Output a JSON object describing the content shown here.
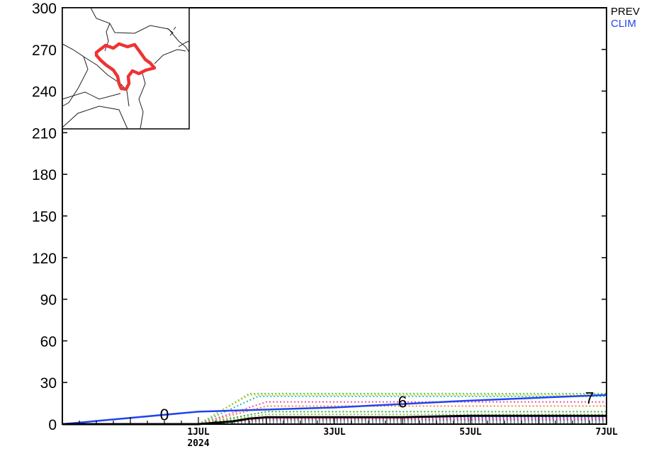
{
  "legend": {
    "prev_label": "PREV",
    "prev_color": "#000000",
    "clim_label": "CLIM",
    "clim_color": "#2244ee"
  },
  "inset_map": {
    "region_highlight_color": "#ee3333"
  },
  "chart_data": {
    "type": "line",
    "title": "",
    "xlabel": "",
    "ylabel": "",
    "ylim": [
      0,
      300
    ],
    "yticks": [
      0,
      30,
      60,
      90,
      120,
      150,
      180,
      210,
      240,
      270,
      300
    ],
    "xlim": [
      "2024-06-29T00:00",
      "2024-07-07T00:00"
    ],
    "xticks": [
      {
        "date": "2024-07-01",
        "label": "1JUL",
        "sublabel": "2024"
      },
      {
        "date": "2024-07-03",
        "label": "3JUL",
        "sublabel": ""
      },
      {
        "date": "2024-07-05",
        "label": "5JUL",
        "sublabel": ""
      },
      {
        "date": "2024-07-07",
        "label": "7JUL",
        "sublabel": ""
      }
    ],
    "grid": false,
    "legend_position": "top-right",
    "series": [
      {
        "name": "PREV",
        "color": "#000000",
        "style": "solid",
        "points": [
          [
            "2024-06-29T00:00",
            0
          ],
          [
            "2024-07-01T00:00",
            0
          ],
          [
            "2024-07-01T12:00",
            2
          ],
          [
            "2024-07-01T18:00",
            4
          ],
          [
            "2024-07-02T00:00",
            5
          ],
          [
            "2024-07-04T00:00",
            5
          ],
          [
            "2024-07-05T00:00",
            6
          ],
          [
            "2024-07-07T00:00",
            6
          ]
        ]
      },
      {
        "name": "CLIM",
        "color": "#2244ee",
        "style": "solid",
        "points": [
          [
            "2024-06-29T00:00",
            0
          ],
          [
            "2024-07-01T00:00",
            9
          ],
          [
            "2024-07-03T00:00",
            12
          ],
          [
            "2024-07-05T00:00",
            17
          ],
          [
            "2024-07-07T00:00",
            21
          ]
        ]
      }
    ],
    "ensemble_members": [
      {
        "color": "#55cc55",
        "points": [
          [
            "2024-07-01T00:00",
            0
          ],
          [
            "2024-07-01T18:00",
            22
          ],
          [
            "2024-07-07T00:00",
            22
          ]
        ]
      },
      {
        "color": "#ddcc33",
        "points": [
          [
            "2024-07-01T00:00",
            0
          ],
          [
            "2024-07-01T18:00",
            21
          ],
          [
            "2024-07-07T00:00",
            21
          ]
        ]
      },
      {
        "color": "#22bbbb",
        "points": [
          [
            "2024-07-01T00:00",
            0
          ],
          [
            "2024-07-01T21:00",
            20
          ],
          [
            "2024-07-07T00:00",
            20
          ]
        ]
      },
      {
        "color": "#ee55aa",
        "points": [
          [
            "2024-07-01T00:00",
            0
          ],
          [
            "2024-07-02T00:00",
            16
          ],
          [
            "2024-07-07T00:00",
            16
          ]
        ]
      },
      {
        "color": "#ee8833",
        "points": [
          [
            "2024-07-01T00:00",
            0
          ],
          [
            "2024-07-02T00:00",
            13
          ],
          [
            "2024-07-07T00:00",
            13
          ]
        ]
      },
      {
        "color": "#33aa33",
        "points": [
          [
            "2024-07-01T00:00",
            0
          ],
          [
            "2024-07-02T00:00",
            9
          ],
          [
            "2024-07-07T00:00",
            9
          ]
        ]
      },
      {
        "color": "#88cc44",
        "points": [
          [
            "2024-07-01T00:00",
            0
          ],
          [
            "2024-07-02T00:00",
            7
          ],
          [
            "2024-07-07T00:00",
            7
          ]
        ]
      },
      {
        "color": "#3366ee",
        "points": [
          [
            "2024-07-01T00:00",
            0
          ],
          [
            "2024-07-02T00:00",
            5
          ],
          [
            "2024-07-07T00:00",
            5
          ]
        ]
      },
      {
        "color": "#aa33cc",
        "points": [
          [
            "2024-07-01T00:00",
            0
          ],
          [
            "2024-07-02T00:00",
            4
          ],
          [
            "2024-07-07T00:00",
            4
          ]
        ]
      },
      {
        "color": "#cc3333",
        "points": [
          [
            "2024-07-01T00:00",
            0
          ],
          [
            "2024-07-02T00:00",
            3
          ],
          [
            "2024-07-07T00:00",
            3
          ]
        ]
      },
      {
        "color": "#44aacc",
        "points": [
          [
            "2024-07-01T00:00",
            0
          ],
          [
            "2024-07-02T00:00",
            2
          ],
          [
            "2024-07-07T00:00",
            2
          ]
        ]
      },
      {
        "color": "#999999",
        "points": [
          [
            "2024-07-01T00:00",
            0
          ],
          [
            "2024-07-02T00:00",
            1
          ],
          [
            "2024-07-07T00:00",
            1
          ]
        ]
      }
    ],
    "annotations": [
      {
        "text": "0",
        "x": "2024-06-30T12:00",
        "y": 7
      },
      {
        "text": "6",
        "x": "2024-07-04T00:00",
        "y": 16
      },
      {
        "text": "7",
        "x": "2024-07-06T18:00",
        "y": 19
      }
    ]
  }
}
